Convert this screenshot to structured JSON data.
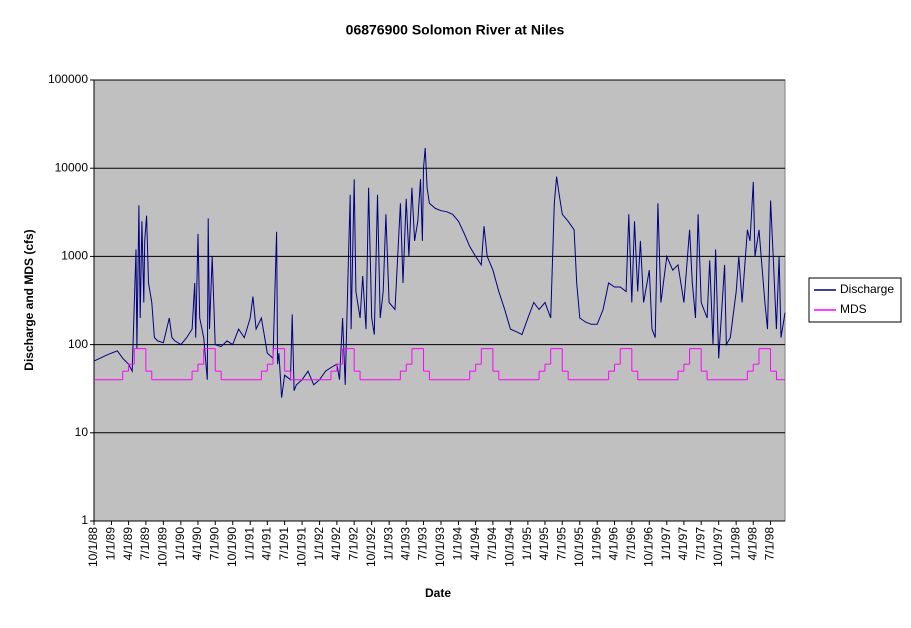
{
  "chart_data": {
    "type": "line",
    "title": "06876900 Solomon River at Niles",
    "x_label": "Date",
    "y_label": "Discharge and MDS (cfs)",
    "log_scale": true,
    "grid": true,
    "legend": "right",
    "background": "#c0c0c0",
    "ylim": [
      1,
      100000
    ],
    "yticks": [
      1,
      10,
      100,
      1000,
      10000,
      100000
    ],
    "xlim": [
      "10/1/88",
      "9/15/98"
    ],
    "xticks": [
      "10/1/88",
      "1/1/89",
      "4/1/89",
      "7/1/89",
      "10/1/89",
      "1/1/90",
      "4/1/90",
      "7/1/90",
      "10/1/90",
      "1/1/91",
      "4/1/91",
      "7/1/91",
      "10/1/91",
      "1/1/92",
      "4/1/92",
      "7/1/92",
      "10/1/92",
      "1/1/93",
      "4/1/93",
      "7/1/93",
      "10/1/93",
      "1/1/94",
      "4/1/94",
      "7/1/94",
      "10/1/94",
      "1/1/95",
      "4/1/95",
      "7/1/95",
      "10/1/95",
      "1/1/96",
      "4/1/96",
      "7/1/96",
      "10/1/96",
      "1/1/97",
      "4/1/97",
      "7/1/97",
      "10/1/97",
      "1/1/98",
      "4/1/98",
      "7/1/98"
    ],
    "series": [
      {
        "name": "Discharge",
        "color": "#000080",
        "x": [
          "10/1/88",
          "11/1/88",
          "12/1/88",
          "1/1/89",
          "2/1/89",
          "3/1/89",
          "4/1/89",
          "4/20/89",
          "5/10/89",
          "5/15/89",
          "5/25/89",
          "6/1/89",
          "6/10/89",
          "6/20/89",
          "6/25/89",
          "7/5/89",
          "7/15/89",
          "8/1/89",
          "8/15/89",
          "9/1/89",
          "10/1/89",
          "11/1/89",
          "11/15/89",
          "12/1/89",
          "1/1/90",
          "2/1/90",
          "3/1/90",
          "3/15/90",
          "3/20/90",
          "4/1/90",
          "4/10/90",
          "5/1/90",
          "5/20/90",
          "5/25/90",
          "6/1/90",
          "6/15/90",
          "7/1/90",
          "8/1/90",
          "9/1/90",
          "10/1/90",
          "11/1/90",
          "12/1/90",
          "1/1/91",
          "1/15/91",
          "2/1/91",
          "3/1/91",
          "4/1/91",
          "5/1/91",
          "5/20/91",
          "5/25/91",
          "6/1/91",
          "6/15/91",
          "7/1/91",
          "8/1/91",
          "8/10/91",
          "8/20/91",
          "9/1/91",
          "10/1/91",
          "11/1/91",
          "12/1/91",
          "1/1/92",
          "2/1/92",
          "3/1/92",
          "4/1/92",
          "4/15/92",
          "5/1/92",
          "5/15/92",
          "6/1/92",
          "6/10/92",
          "6/15/92",
          "7/1/92",
          "7/10/92",
          "8/1/92",
          "8/15/92",
          "9/1/92",
          "9/15/92",
          "10/1/92",
          "10/15/92",
          "11/1/92",
          "11/15/92",
          "12/1/92",
          "12/15/92",
          "1/1/93",
          "2/1/93",
          "3/1/93",
          "3/15/93",
          "4/1/93",
          "4/15/93",
          "5/1/93",
          "5/15/93",
          "6/1/93",
          "6/15/93",
          "6/25/93",
          "7/1/93",
          "7/10/93",
          "7/20/93",
          "8/1/93",
          "9/1/93",
          "10/1/93",
          "11/1/93",
          "12/1/93",
          "1/1/94",
          "2/1/94",
          "3/1/94",
          "4/1/94",
          "5/1/94",
          "5/15/94",
          "6/1/94",
          "7/1/94",
          "8/1/94",
          "9/1/94",
          "10/1/94",
          "11/1/94",
          "12/1/94",
          "1/1/95",
          "2/1/95",
          "3/1/95",
          "4/1/95",
          "5/1/95",
          "5/20/95",
          "6/1/95",
          "6/15/95",
          "7/1/95",
          "8/1/95",
          "9/1/95",
          "9/15/95",
          "10/1/95",
          "11/1/95",
          "12/1/95",
          "1/1/96",
          "2/1/96",
          "3/1/96",
          "4/1/96",
          "5/1/96",
          "6/1/96",
          "6/15/96",
          "7/1/96",
          "7/15/96",
          "8/1/96",
          "8/15/96",
          "9/1/96",
          "10/1/96",
          "10/15/96",
          "11/1/96",
          "11/15/96",
          "12/1/96",
          "1/1/97",
          "2/1/97",
          "3/1/97",
          "4/1/97",
          "5/1/97",
          "5/15/97",
          "6/1/97",
          "6/15/97",
          "7/1/97",
          "8/1/97",
          "8/15/97",
          "9/1/97",
          "9/15/97",
          "10/1/97",
          "11/1/97",
          "11/10/97",
          "12/1/97",
          "1/1/98",
          "1/15/98",
          "2/1/98",
          "3/1/98",
          "3/15/98",
          "4/1/98",
          "4/10/98",
          "5/1/98",
          "6/1/98",
          "6/15/98",
          "7/1/98",
          "7/15/98",
          "8/1/98",
          "8/15/98",
          "8/25/98",
          "9/15/98"
        ],
        "values": [
          65,
          70,
          75,
          80,
          85,
          70,
          60,
          50,
          1200,
          90,
          3800,
          200,
          2500,
          300,
          1500,
          2900,
          500,
          300,
          120,
          110,
          105,
          200,
          120,
          110,
          100,
          120,
          150,
          500,
          120,
          1800,
          200,
          120,
          40,
          2700,
          150,
          1000,
          100,
          95,
          110,
          100,
          150,
          120,
          200,
          350,
          150,
          200,
          80,
          70,
          1900,
          60,
          80,
          25,
          45,
          40,
          220,
          30,
          35,
          40,
          50,
          35,
          40,
          50,
          55,
          60,
          40,
          200,
          35,
          1000,
          5000,
          150,
          7500,
          400,
          200,
          600,
          150,
          6000,
          200,
          130,
          5000,
          200,
          400,
          3000,
          300,
          250,
          4000,
          500,
          4500,
          1000,
          6000,
          1500,
          2500,
          7500,
          1500,
          10000,
          17000,
          6000,
          4000,
          3500,
          3300,
          3200,
          3000,
          2500,
          1800,
          1300,
          1000,
          800,
          2200,
          1000,
          700,
          400,
          250,
          150,
          140,
          130,
          200,
          300,
          250,
          300,
          200,
          4000,
          8000,
          5000,
          3000,
          2500,
          2000,
          500,
          200,
          180,
          170,
          170,
          250,
          500,
          450,
          450,
          400,
          3000,
          300,
          2500,
          400,
          1500,
          300,
          700,
          150,
          120,
          4000,
          300,
          1000,
          700,
          800,
          300,
          2000,
          500,
          200,
          3000,
          300,
          200,
          900,
          100,
          1200,
          70,
          800,
          100,
          120,
          400,
          1000,
          300,
          2000,
          1500,
          7000,
          1000,
          2000,
          300,
          150,
          4300,
          1000,
          150,
          1000,
          120,
          230
        ]
      },
      {
        "name": "MDS",
        "color": "#ff00ff",
        "step": "after",
        "x": [
          "10/1/88",
          "3/1/89",
          "4/1/89",
          "5/1/89",
          "7/1/89",
          "8/1/89",
          "3/1/90",
          "4/1/90",
          "5/1/90",
          "7/1/90",
          "8/1/90",
          "3/1/91",
          "4/1/91",
          "5/1/91",
          "7/1/91",
          "8/1/91",
          "3/1/92",
          "4/1/92",
          "5/1/92",
          "7/1/92",
          "8/1/92",
          "3/1/93",
          "4/1/93",
          "5/1/93",
          "7/1/93",
          "8/1/93",
          "3/1/94",
          "4/1/94",
          "5/1/94",
          "7/1/94",
          "8/1/94",
          "3/1/95",
          "4/1/95",
          "5/1/95",
          "7/1/95",
          "8/1/95",
          "3/1/96",
          "4/1/96",
          "5/1/96",
          "7/1/96",
          "8/1/96",
          "3/1/97",
          "4/1/97",
          "5/1/97",
          "7/1/97",
          "8/1/97",
          "3/1/98",
          "4/1/98",
          "5/1/98",
          "7/1/98",
          "8/1/98"
        ],
        "values": [
          40,
          50,
          60,
          90,
          50,
          40,
          50,
          60,
          90,
          50,
          40,
          50,
          60,
          90,
          50,
          40,
          50,
          60,
          90,
          50,
          40,
          50,
          60,
          90,
          50,
          40,
          50,
          60,
          90,
          50,
          40,
          50,
          60,
          90,
          50,
          40,
          50,
          60,
          90,
          50,
          40,
          50,
          60,
          90,
          50,
          40,
          50,
          60,
          90,
          50,
          40
        ]
      }
    ]
  }
}
